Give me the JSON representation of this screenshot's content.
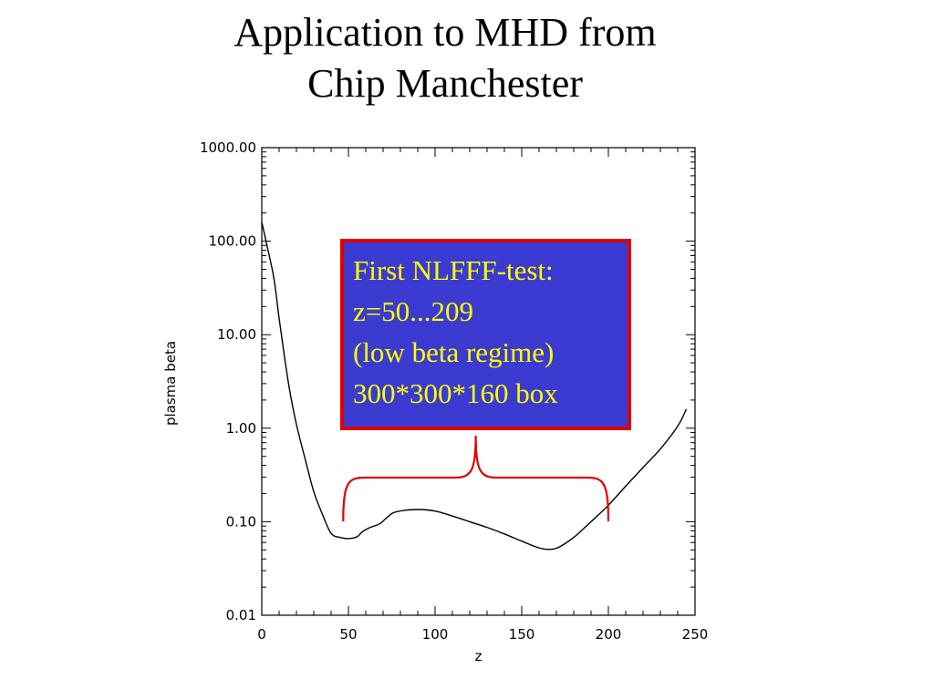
{
  "title": {
    "line1": "Application to MHD from",
    "line2": "Chip Manchester"
  },
  "chart_data": {
    "type": "line",
    "title": "",
    "xlabel": "z",
    "ylabel": "plasma beta",
    "xlim": [
      0,
      250
    ],
    "ylim": [
      0.01,
      1000
    ],
    "yscale": "log",
    "grid": false,
    "x_ticks": [
      0,
      50,
      100,
      150,
      200,
      250
    ],
    "x_tick_labels": [
      "0",
      "50",
      "100",
      "150",
      "200",
      "250"
    ],
    "y_ticks": [
      0.01,
      0.1,
      1,
      10,
      100,
      1000
    ],
    "y_tick_labels": [
      "0.01",
      "0.10",
      "1.00",
      "10.00",
      "100.00",
      "1000.00"
    ],
    "series": [
      {
        "x": [
          0,
          3,
          7,
          10,
          13,
          16,
          20,
          25,
          30,
          35,
          40,
          45,
          50,
          55,
          58,
          62,
          68,
          72,
          76,
          82,
          90,
          100,
          110,
          120,
          130,
          140,
          150,
          158,
          163,
          168,
          172,
          180,
          190,
          200,
          210,
          220,
          230,
          240,
          245
        ],
        "y": [
          160,
          90,
          40,
          15,
          6,
          2.6,
          1.1,
          0.47,
          0.21,
          0.12,
          0.075,
          0.068,
          0.066,
          0.069,
          0.078,
          0.086,
          0.095,
          0.11,
          0.125,
          0.132,
          0.135,
          0.13,
          0.115,
          0.1,
          0.087,
          0.074,
          0.062,
          0.054,
          0.051,
          0.051,
          0.054,
          0.068,
          0.1,
          0.15,
          0.24,
          0.38,
          0.6,
          1.05,
          1.6
        ]
      }
    ],
    "annotation": {
      "lines": [
        "First NLFFF-test:",
        "z=50...209",
        "(low beta regime)",
        "300*300*160 box"
      ],
      "box_fill": "#3b3bd2",
      "box_border": "#e00000",
      "text_color": "#ffff00",
      "brace_color": "#e00000",
      "brace_range_z": [
        47,
        200
      ]
    }
  }
}
